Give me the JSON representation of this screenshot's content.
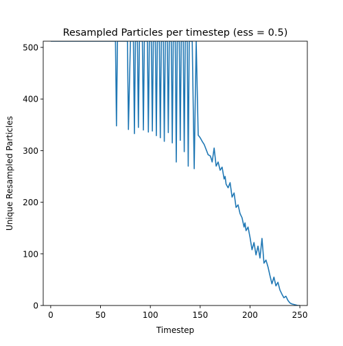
{
  "chart_data": {
    "type": "line",
    "title": "Resampled Particles per timestep (ess = 0.5)",
    "xlabel": "Timestep",
    "ylabel": "Unique Resampled Particles",
    "xlim": [
      -7.5,
      257.5
    ],
    "ylim": [
      0,
      512
    ],
    "xticks": [
      0,
      50,
      100,
      150,
      200,
      250
    ],
    "yticks": [
      0,
      100,
      200,
      300,
      400,
      500
    ],
    "grid": false,
    "legend": "none",
    "series": [
      {
        "color": "#1f77b4",
        "x": [
          0,
          65,
          66,
          67,
          68,
          70,
          72,
          73,
          75,
          77,
          78,
          80,
          82,
          83,
          84,
          85,
          87,
          88,
          89,
          90,
          92,
          93,
          94,
          95,
          97,
          98,
          99,
          100,
          101,
          102,
          103,
          104,
          105,
          106,
          107,
          108,
          109,
          110,
          111,
          112,
          113,
          114,
          115,
          116,
          117,
          118,
          119,
          120,
          121,
          122,
          123,
          124,
          125,
          126,
          127,
          128,
          129,
          130,
          131,
          132,
          133,
          134,
          135,
          136,
          137,
          138,
          139,
          140,
          142,
          144,
          146,
          148,
          150,
          152,
          154,
          156,
          158,
          160,
          161,
          162,
          164,
          166,
          168,
          170,
          172,
          174,
          175,
          176,
          178,
          180,
          182,
          184,
          186,
          188,
          190,
          192,
          194,
          195,
          196,
          198,
          200,
          202,
          204,
          206,
          208,
          210,
          212,
          214,
          216,
          218,
          220,
          222,
          224,
          226,
          228,
          230,
          232,
          234,
          236,
          238,
          240,
          242,
          244,
          246,
          248,
          250
        ],
        "y": [
          512,
          512,
          348,
          512,
          512,
          512,
          512,
          512,
          512,
          512,
          341,
          512,
          512,
          512,
          333,
          512,
          512,
          345,
          512,
          512,
          512,
          340,
          512,
          512,
          512,
          336,
          512,
          512,
          512,
          338,
          512,
          512,
          512,
          329,
          512,
          512,
          512,
          325,
          512,
          512,
          512,
          318,
          512,
          512,
          512,
          335,
          512,
          512,
          512,
          315,
          512,
          512,
          512,
          278,
          512,
          512,
          512,
          320,
          512,
          512,
          512,
          298,
          512,
          512,
          512,
          270,
          512,
          512,
          512,
          265,
          512,
          330,
          325,
          318,
          312,
          302,
          292,
          290,
          285,
          278,
          305,
          270,
          278,
          262,
          268,
          245,
          250,
          235,
          228,
          238,
          210,
          218,
          190,
          195,
          178,
          170,
          152,
          160,
          145,
          152,
          132,
          108,
          122,
          98,
          115,
          92,
          130,
          82,
          88,
          75,
          58,
          42,
          55,
          38,
          45,
          30,
          22,
          15,
          18,
          10,
          5,
          3,
          2,
          1,
          0,
          0
        ]
      }
    ]
  }
}
